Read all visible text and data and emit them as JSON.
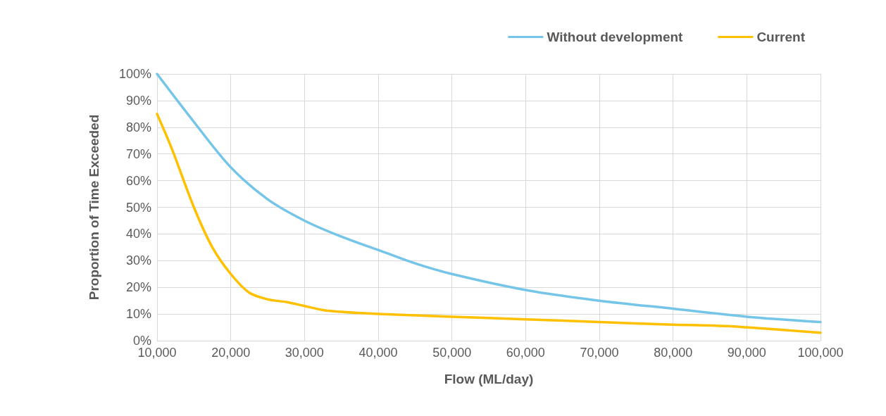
{
  "chart_data": {
    "type": "line",
    "xlabel": "Flow (ML/day)",
    "ylabel": "Proportion of Time Exceeded",
    "series": [
      {
        "name": "Without development",
        "color": "#75c5e8",
        "x": [
          10000,
          15000,
          20000,
          25000,
          30000,
          35000,
          40000,
          45000,
          50000,
          60000,
          70000,
          80000,
          90000,
          100000
        ],
        "values": [
          100,
          82,
          65,
          53,
          45,
          39,
          34,
          29,
          25,
          19,
          15,
          12,
          9,
          7
        ]
      },
      {
        "name": "Current",
        "color": "#ffc000",
        "x": [
          10000,
          12000,
          15000,
          17500,
          20000,
          22500,
          25000,
          27500,
          30000,
          32500,
          35000,
          40000,
          50000,
          60000,
          70000,
          80000,
          87500,
          90000,
          100000
        ],
        "values": [
          85,
          72,
          50,
          35,
          25,
          18,
          15.5,
          14.5,
          13,
          11.5,
          10.8,
          10,
          9,
          8,
          7,
          6,
          5.5,
          5,
          3
        ]
      }
    ],
    "xlim": [
      10000,
      100000
    ],
    "xticks": [
      {
        "value": 10000,
        "label": "10,000"
      },
      {
        "value": 20000,
        "label": "20,000"
      },
      {
        "value": 30000,
        "label": "30,000"
      },
      {
        "value": 40000,
        "label": "40,000"
      },
      {
        "value": 50000,
        "label": "50,000"
      },
      {
        "value": 60000,
        "label": "60,000"
      },
      {
        "value": 70000,
        "label": "70,000"
      },
      {
        "value": 80000,
        "label": "80,000"
      },
      {
        "value": 90000,
        "label": "90,000"
      },
      {
        "value": 100000,
        "label": "100,000"
      }
    ],
    "ylim": [
      0,
      100
    ],
    "yticks": [
      {
        "value": 0,
        "label": "0%"
      },
      {
        "value": 10,
        "label": "10%"
      },
      {
        "value": 20,
        "label": "20%"
      },
      {
        "value": 30,
        "label": "30%"
      },
      {
        "value": 40,
        "label": "40%"
      },
      {
        "value": 50,
        "label": "50%"
      },
      {
        "value": 60,
        "label": "60%"
      },
      {
        "value": 70,
        "label": "70%"
      },
      {
        "value": 80,
        "label": "80%"
      },
      {
        "value": 90,
        "label": "90%"
      },
      {
        "value": 100,
        "label": "100%"
      }
    ],
    "grid": true,
    "legend": "top right",
    "marker": "none",
    "line_style": "solid"
  }
}
